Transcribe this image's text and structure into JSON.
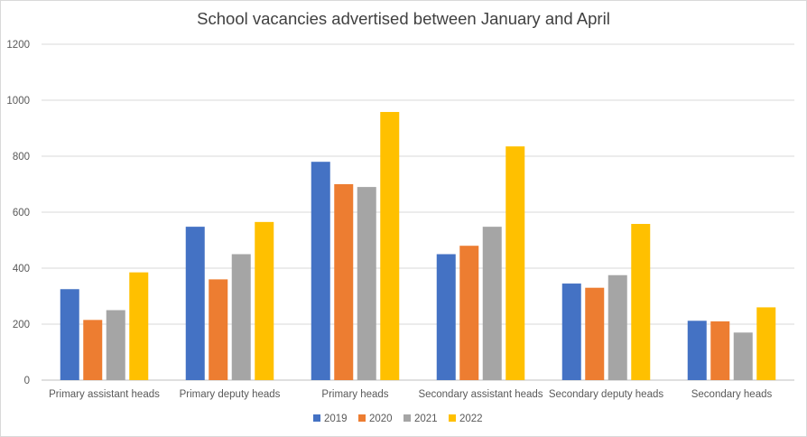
{
  "chart_data": {
    "type": "bar",
    "title": "School vacancies advertised between January and April",
    "xlabel": "",
    "ylabel": "",
    "ylim": [
      0,
      1200
    ],
    "yticks": [
      0,
      200,
      400,
      600,
      800,
      1000,
      1200
    ],
    "grid": true,
    "legend_position": "bottom",
    "categories": [
      "Primary assistant heads",
      "Primary deputy heads",
      "Primary heads",
      "Secondary assistant heads",
      "Secondary deputy heads",
      "Secondary heads"
    ],
    "series": [
      {
        "name": "2019",
        "color": "#4472c4",
        "values": [
          325,
          548,
          780,
          450,
          345,
          212
        ]
      },
      {
        "name": "2020",
        "color": "#ed7d31",
        "values": [
          215,
          360,
          700,
          480,
          330,
          210
        ]
      },
      {
        "name": "2021",
        "color": "#a5a5a5",
        "values": [
          250,
          450,
          690,
          548,
          375,
          170
        ]
      },
      {
        "name": "2022",
        "color": "#ffc000",
        "values": [
          385,
          565,
          958,
          835,
          558,
          260
        ]
      }
    ]
  }
}
